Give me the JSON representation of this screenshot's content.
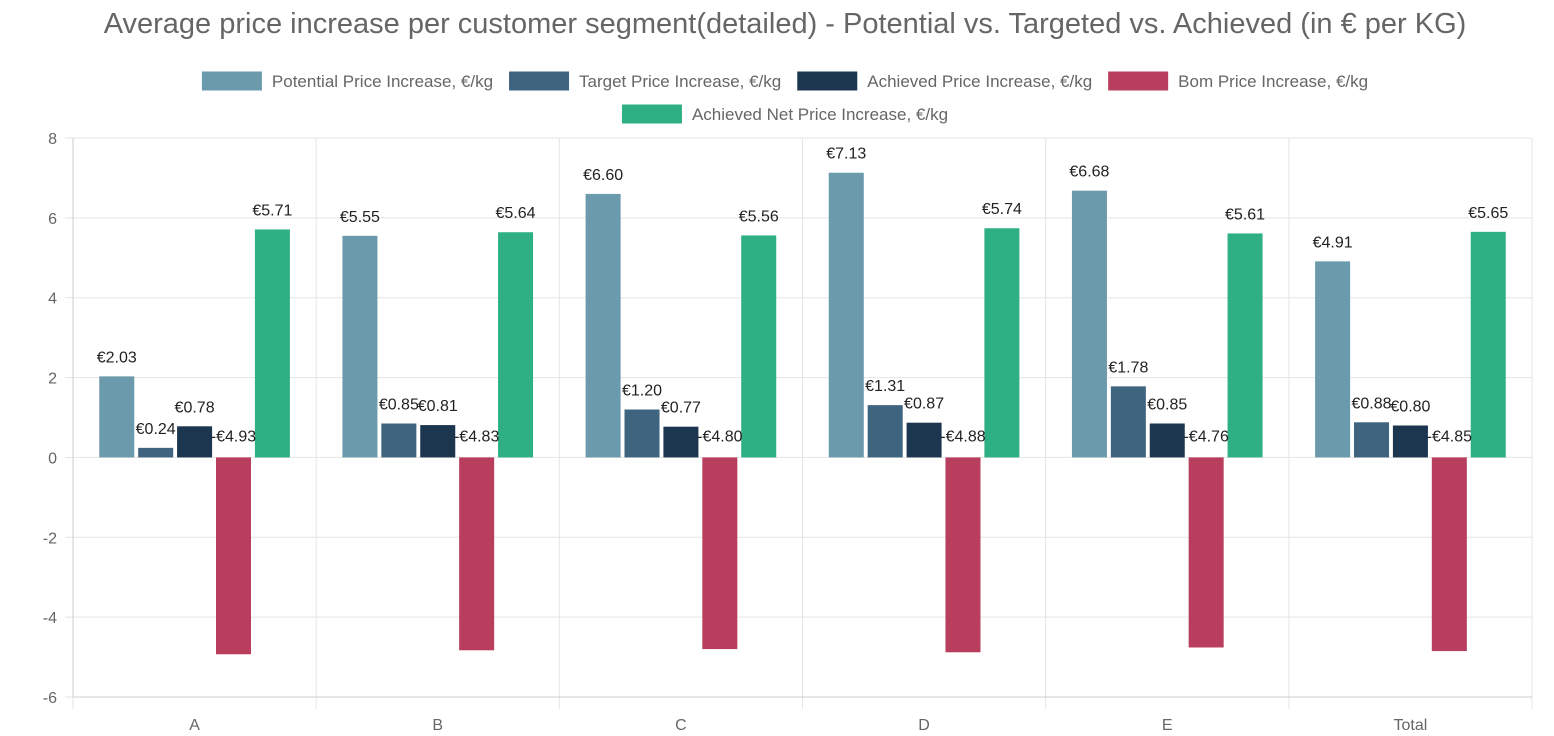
{
  "chart_data": {
    "type": "bar",
    "title": "Average price increase per customer segment(detailed) - Potential vs. Targeted vs. Achieved (in € per KG)",
    "xlabel": "",
    "ylabel": "",
    "categories": [
      "A",
      "B",
      "C",
      "D",
      "E",
      "Total"
    ],
    "ylim": [
      -6,
      8
    ],
    "yticks": [
      8,
      6,
      4,
      2,
      0,
      -2,
      -4,
      -6
    ],
    "grid": true,
    "legend_position": "top",
    "series": [
      {
        "name": "Potential Price Increase, €/kg",
        "color": "#6a9aab",
        "values": [
          2.03,
          5.55,
          6.6,
          7.13,
          6.68,
          4.91
        ],
        "labels": [
          "€2.03",
          "€5.55",
          "€6.60",
          "€7.13",
          "€6.68",
          "€4.91"
        ]
      },
      {
        "name": "Target Price Increase, €/kg",
        "color": "#3e6480",
        "values": [
          0.24,
          0.85,
          1.2,
          1.31,
          1.78,
          0.88
        ],
        "labels": [
          "€0.24",
          "€0.85",
          "€1.20",
          "€1.31",
          "€1.78",
          "€0.88"
        ]
      },
      {
        "name": "Achieved Price Increase, €/kg",
        "color": "#1c3650",
        "values": [
          0.78,
          0.81,
          0.77,
          0.87,
          0.85,
          0.8
        ],
        "labels": [
          "€0.78",
          "€0.81",
          "€0.77",
          "€0.87",
          "€0.85",
          "€0.80"
        ]
      },
      {
        "name": "Bom Price Increase, €/kg",
        "color": "#b93d5c",
        "values": [
          -4.93,
          -4.83,
          -4.8,
          -4.88,
          -4.76,
          -4.85
        ],
        "labels": [
          "-€4.93",
          "-€4.83",
          "-€4.80",
          "-€4.88",
          "-€4.76",
          "-€4.85"
        ]
      },
      {
        "name": "Achieved Net Price Increase, €/kg",
        "color": "#2eaf84",
        "values": [
          5.71,
          5.64,
          5.56,
          5.74,
          5.61,
          5.65
        ],
        "labels": [
          "€5.71",
          "€5.64",
          "€5.56",
          "€5.74",
          "€5.61",
          "€5.65"
        ]
      }
    ]
  }
}
